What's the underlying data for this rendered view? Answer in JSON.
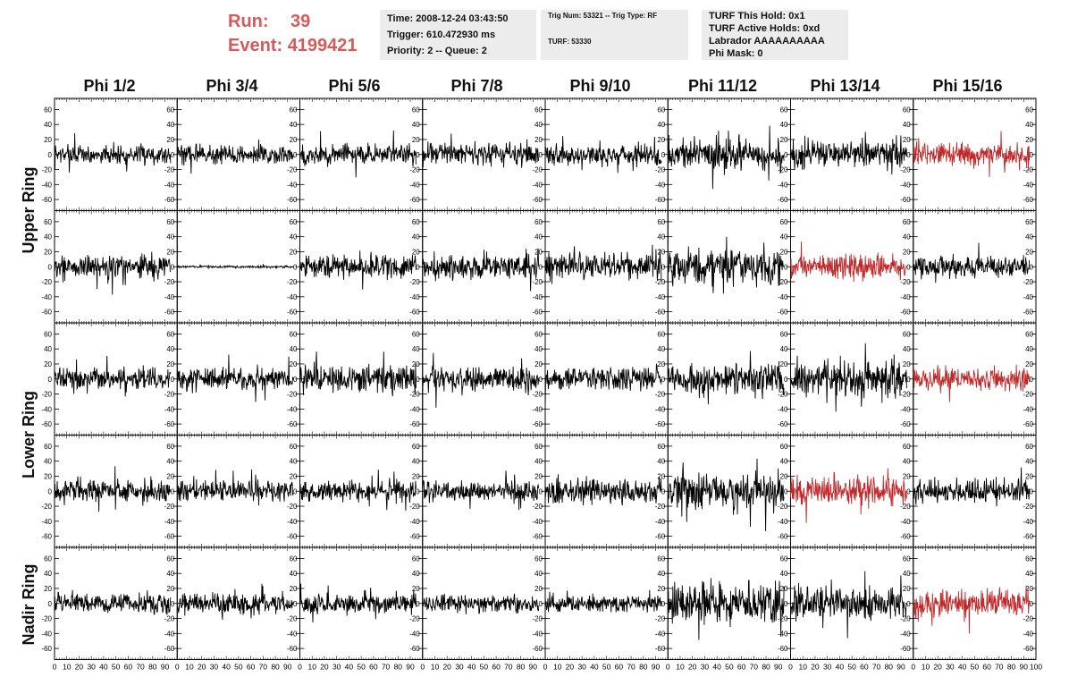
{
  "header": {
    "run_label": "Run:",
    "run_value": "39",
    "event_label": "Event:",
    "event_value": "4199421",
    "time": "Time: 2008-12-24 03:43:50",
    "trigger": "Trigger: 610.472930 ms",
    "priority": "Priority: 2 -- Queue: 2",
    "trig_num": "Trig Num: 53321 -- Trig Type: RF",
    "turf": "TURF: 53330",
    "turf_this_hold": "TURF This Hold: 0x1",
    "turf_active_holds": "TURF Active Holds: 0xd",
    "labrador": "Labrador AAAAAAAAAA",
    "phi_mask": "Phi Mask: 0"
  },
  "columns": [
    "Phi 1/2",
    "Phi 3/4",
    "Phi 5/6",
    "Phi 7/8",
    "Phi 9/10",
    "Phi 11/12",
    "Phi 13/14",
    "Phi 15/16"
  ],
  "row_groups": [
    {
      "label": "Upper Ring",
      "rows": [
        0,
        1
      ]
    },
    {
      "label": "Lower Ring",
      "rows": [
        2,
        3
      ]
    },
    {
      "label": "Nadir Ring",
      "rows": [
        4
      ]
    }
  ],
  "chart_data": {
    "type": "line",
    "x_ticks": [
      0,
      10,
      20,
      30,
      40,
      50,
      60,
      70,
      80,
      90,
      100
    ],
    "x_tick_labels": [
      "0",
      "10",
      "20",
      "30",
      "40",
      "50",
      "60",
      "70",
      "80",
      "90",
      "100"
    ],
    "y_ticks": [
      60,
      40,
      20,
      0,
      -20,
      -40,
      -60
    ],
    "y_tick_labels": [
      "60",
      "40",
      "20",
      "0",
      "-20",
      "-40",
      "-60"
    ],
    "xlim": [
      0,
      100
    ],
    "ylim": [
      -70,
      70
    ],
    "colors": {
      "normal": "#000000",
      "highlight": "#c0282a"
    },
    "panels": [
      {
        "row": 0,
        "col": 0,
        "amplitude": 18,
        "color": "normal"
      },
      {
        "row": 0,
        "col": 1,
        "amplitude": 18,
        "color": "normal"
      },
      {
        "row": 0,
        "col": 2,
        "amplitude": 20,
        "color": "normal"
      },
      {
        "row": 0,
        "col": 3,
        "amplitude": 20,
        "color": "normal"
      },
      {
        "row": 0,
        "col": 4,
        "amplitude": 20,
        "color": "normal"
      },
      {
        "row": 0,
        "col": 5,
        "amplitude": 30,
        "color": "normal"
      },
      {
        "row": 0,
        "col": 6,
        "amplitude": 28,
        "color": "normal"
      },
      {
        "row": 0,
        "col": 7,
        "amplitude": 22,
        "color": "highlight"
      },
      {
        "row": 1,
        "col": 0,
        "amplitude": 22,
        "color": "normal"
      },
      {
        "row": 1,
        "col": 1,
        "amplitude": 2,
        "color": "normal"
      },
      {
        "row": 1,
        "col": 2,
        "amplitude": 22,
        "color": "normal"
      },
      {
        "row": 1,
        "col": 3,
        "amplitude": 22,
        "color": "normal"
      },
      {
        "row": 1,
        "col": 4,
        "amplitude": 26,
        "color": "normal"
      },
      {
        "row": 1,
        "col": 5,
        "amplitude": 34,
        "color": "normal"
      },
      {
        "row": 1,
        "col": 6,
        "amplitude": 24,
        "color": "highlight"
      },
      {
        "row": 1,
        "col": 7,
        "amplitude": 20,
        "color": "normal"
      },
      {
        "row": 2,
        "col": 0,
        "amplitude": 20,
        "color": "normal"
      },
      {
        "row": 2,
        "col": 1,
        "amplitude": 22,
        "color": "normal"
      },
      {
        "row": 2,
        "col": 2,
        "amplitude": 26,
        "color": "normal"
      },
      {
        "row": 2,
        "col": 3,
        "amplitude": 24,
        "color": "normal"
      },
      {
        "row": 2,
        "col": 4,
        "amplitude": 22,
        "color": "normal"
      },
      {
        "row": 2,
        "col": 5,
        "amplitude": 30,
        "color": "normal"
      },
      {
        "row": 2,
        "col": 6,
        "amplitude": 32,
        "color": "normal"
      },
      {
        "row": 2,
        "col": 7,
        "amplitude": 22,
        "color": "highlight"
      },
      {
        "row": 3,
        "col": 0,
        "amplitude": 20,
        "color": "normal"
      },
      {
        "row": 3,
        "col": 1,
        "amplitude": 20,
        "color": "normal"
      },
      {
        "row": 3,
        "col": 2,
        "amplitude": 20,
        "color": "normal"
      },
      {
        "row": 3,
        "col": 3,
        "amplitude": 20,
        "color": "normal"
      },
      {
        "row": 3,
        "col": 4,
        "amplitude": 24,
        "color": "normal"
      },
      {
        "row": 3,
        "col": 5,
        "amplitude": 34,
        "color": "normal"
      },
      {
        "row": 3,
        "col": 6,
        "amplitude": 26,
        "color": "highlight"
      },
      {
        "row": 3,
        "col": 7,
        "amplitude": 22,
        "color": "normal"
      },
      {
        "row": 4,
        "col": 0,
        "amplitude": 18,
        "color": "normal"
      },
      {
        "row": 4,
        "col": 1,
        "amplitude": 20,
        "color": "normal"
      },
      {
        "row": 4,
        "col": 2,
        "amplitude": 20,
        "color": "normal"
      },
      {
        "row": 4,
        "col": 3,
        "amplitude": 18,
        "color": "normal"
      },
      {
        "row": 4,
        "col": 4,
        "amplitude": 16,
        "color": "normal"
      },
      {
        "row": 4,
        "col": 5,
        "amplitude": 40,
        "color": "normal"
      },
      {
        "row": 4,
        "col": 6,
        "amplitude": 30,
        "color": "normal"
      },
      {
        "row": 4,
        "col": 7,
        "amplitude": 26,
        "color": "highlight"
      }
    ]
  }
}
